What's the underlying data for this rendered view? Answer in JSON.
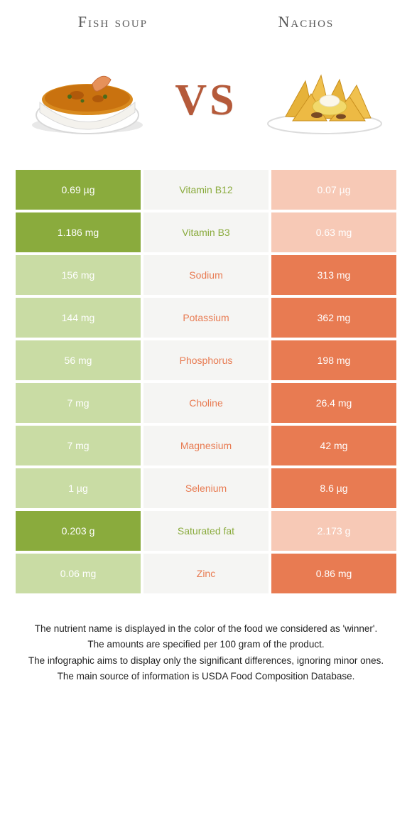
{
  "titles": {
    "left": "Fish soup",
    "right": "Nachos"
  },
  "vs_label": "VS",
  "colors": {
    "left_strong": "#8aab3d",
    "left_faded": "#c9dca4",
    "right_strong": "#e87b52",
    "right_faded": "#f7c9b6",
    "mid_bg": "#f5f5f3",
    "nutrient_left": "#8aab3d",
    "nutrient_right": "#e87b52",
    "vs": "#b55a3a"
  },
  "rows": [
    {
      "nutrient": "Vitamin B12",
      "left": "0.69 µg",
      "right": "0.07 µg",
      "winner": "left"
    },
    {
      "nutrient": "Vitamin B3",
      "left": "1.186 mg",
      "right": "0.63 mg",
      "winner": "left"
    },
    {
      "nutrient": "Sodium",
      "left": "156 mg",
      "right": "313 mg",
      "winner": "right"
    },
    {
      "nutrient": "Potassium",
      "left": "144 mg",
      "right": "362 mg",
      "winner": "right"
    },
    {
      "nutrient": "Phosphorus",
      "left": "56 mg",
      "right": "198 mg",
      "winner": "right"
    },
    {
      "nutrient": "Choline",
      "left": "7 mg",
      "right": "26.4 mg",
      "winner": "right"
    },
    {
      "nutrient": "Magnesium",
      "left": "7 mg",
      "right": "42 mg",
      "winner": "right"
    },
    {
      "nutrient": "Selenium",
      "left": "1 µg",
      "right": "8.6 µg",
      "winner": "right"
    },
    {
      "nutrient": "Saturated fat",
      "left": "0.203 g",
      "right": "2.173 g",
      "winner": "left"
    },
    {
      "nutrient": "Zinc",
      "left": "0.06 mg",
      "right": "0.86 mg",
      "winner": "right"
    }
  ],
  "footnotes": [
    "The nutrient name is displayed in the color of the food we considered as 'winner'.",
    "The amounts are specified per 100 gram of the product.",
    "The infographic aims to display only the significant differences, ignoring minor ones.",
    "The main source of information is USDA Food Composition Database."
  ]
}
